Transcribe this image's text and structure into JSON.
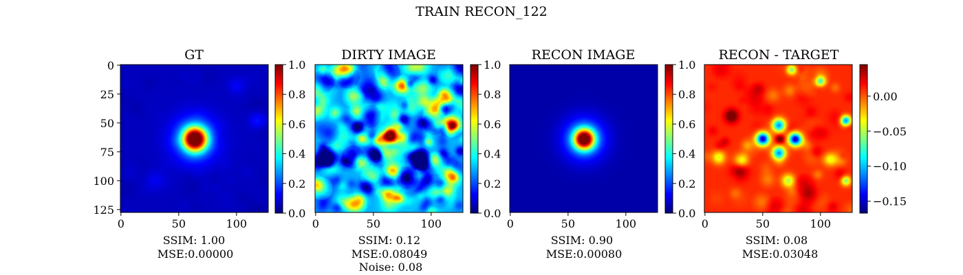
{
  "suptitle": "TRAIN RECON_122",
  "chart_data": [
    {
      "type": "heatmap",
      "title": "GT",
      "image_size": [
        128,
        128
      ],
      "x_ticks": [
        0,
        50,
        100
      ],
      "y_ticks": [
        0,
        25,
        50,
        75,
        100,
        125
      ],
      "blobs": [
        {
          "x": 64,
          "y": 64,
          "sigma": 7,
          "amp": 1.0
        },
        {
          "x": 64,
          "y": 64,
          "sigma": 14,
          "amp": 0.22
        },
        {
          "x": 118,
          "y": 48,
          "sigma": 5,
          "amp": 0.08
        },
        {
          "x": 100,
          "y": 18,
          "sigma": 5,
          "amp": 0.06
        },
        {
          "x": 30,
          "y": 100,
          "sigma": 6,
          "amp": 0.05
        }
      ],
      "noise_amp": 0.03,
      "background": 0.06,
      "colorbar": {
        "min": 0.0,
        "max": 1.0,
        "ticks": [
          "0.0",
          "0.2",
          "0.4",
          "0.6",
          "0.8",
          "1.0"
        ],
        "tick_values": [
          0.0,
          0.2,
          0.4,
          0.6,
          0.8,
          1.0
        ]
      },
      "caption": [
        "SSIM: 1.00",
        "MSE:0.00000"
      ]
    },
    {
      "type": "heatmap",
      "title": "DIRTY IMAGE",
      "image_size": [
        128,
        128
      ],
      "x_ticks": [
        0,
        50,
        100
      ],
      "y_ticks": [],
      "blobs": [
        {
          "x": 64,
          "y": 62,
          "sigma": 5,
          "amp": 0.55
        },
        {
          "x": 88,
          "y": 66,
          "sigma": 7,
          "amp": -0.18
        },
        {
          "x": 64,
          "y": 120,
          "sigma": 5,
          "amp": 0.2
        }
      ],
      "noise_amp": 0.55,
      "background": 0.3,
      "colorbar": {
        "min": 0.0,
        "max": 1.0,
        "ticks": [
          "0.0",
          "0.2",
          "0.4",
          "0.6",
          "0.8",
          "1.0"
        ],
        "tick_values": [
          0.0,
          0.2,
          0.4,
          0.6,
          0.8,
          1.0
        ]
      },
      "caption": [
        "SSIM: 0.12",
        "MSE:0.08049",
        "Noise: 0.08"
      ]
    },
    {
      "type": "heatmap",
      "title": "RECON IMAGE",
      "image_size": [
        128,
        128
      ],
      "x_ticks": [
        0,
        50,
        100
      ],
      "y_ticks": [],
      "blobs": [
        {
          "x": 64,
          "y": 64,
          "sigma": 6,
          "amp": 0.95
        },
        {
          "x": 64,
          "y": 64,
          "sigma": 13,
          "amp": 0.25
        }
      ],
      "noise_amp": 0.0,
      "background": 0.04,
      "colorbar": {
        "min": 0.0,
        "max": 1.0,
        "ticks": [
          "0.0",
          "0.2",
          "0.4",
          "0.6",
          "0.8",
          "1.0"
        ],
        "tick_values": [
          0.0,
          0.2,
          0.4,
          0.6,
          0.8,
          1.0
        ]
      },
      "caption": [
        "SSIM: 0.90",
        "MSE:0.00080"
      ]
    },
    {
      "type": "heatmap",
      "title": "RECON - TARGET",
      "image_size": [
        128,
        128
      ],
      "x_ticks": [
        0,
        50,
        100
      ],
      "y_ticks": [],
      "blobs": [
        {
          "x": 50,
          "y": 64,
          "sigma": 4,
          "amp": -0.17
        },
        {
          "x": 78,
          "y": 64,
          "sigma": 4,
          "amp": -0.16
        },
        {
          "x": 64,
          "y": 52,
          "sigma": 4,
          "amp": -0.12
        },
        {
          "x": 64,
          "y": 76,
          "sigma": 4,
          "amp": -0.12
        },
        {
          "x": 65,
          "y": 64,
          "sigma": 2.5,
          "amp": 0.05
        },
        {
          "x": 23,
          "y": 44,
          "sigma": 4,
          "amp": 0.05
        },
        {
          "x": 122,
          "y": 48,
          "sigma": 3,
          "amp": -0.12
        },
        {
          "x": 100,
          "y": 14,
          "sigma": 3,
          "amp": -0.08
        },
        {
          "x": 75,
          "y": 4,
          "sigma": 3,
          "amp": -0.07
        },
        {
          "x": 12,
          "y": 80,
          "sigma": 4,
          "amp": -0.05
        },
        {
          "x": 32,
          "y": 82,
          "sigma": 4,
          "amp": -0.05
        },
        {
          "x": 108,
          "y": 82,
          "sigma": 4,
          "amp": -0.05
        },
        {
          "x": 72,
          "y": 100,
          "sigma": 4,
          "amp": -0.06
        },
        {
          "x": 30,
          "y": 92,
          "sigma": 5,
          "amp": 0.03
        },
        {
          "x": 122,
          "y": 100,
          "sigma": 3,
          "amp": -0.06
        }
      ],
      "noise_amp": 0.035,
      "background": 0.01,
      "colorbar": {
        "min": -0.167,
        "max": 0.045,
        "ticks": [
          "0.00",
          "−0.05",
          "−0.10",
          "−0.15"
        ],
        "tick_values": [
          0.0,
          -0.05,
          -0.1,
          -0.15
        ]
      },
      "caption": [
        "SSIM: 0.08",
        "MSE:0.03048"
      ]
    }
  ]
}
